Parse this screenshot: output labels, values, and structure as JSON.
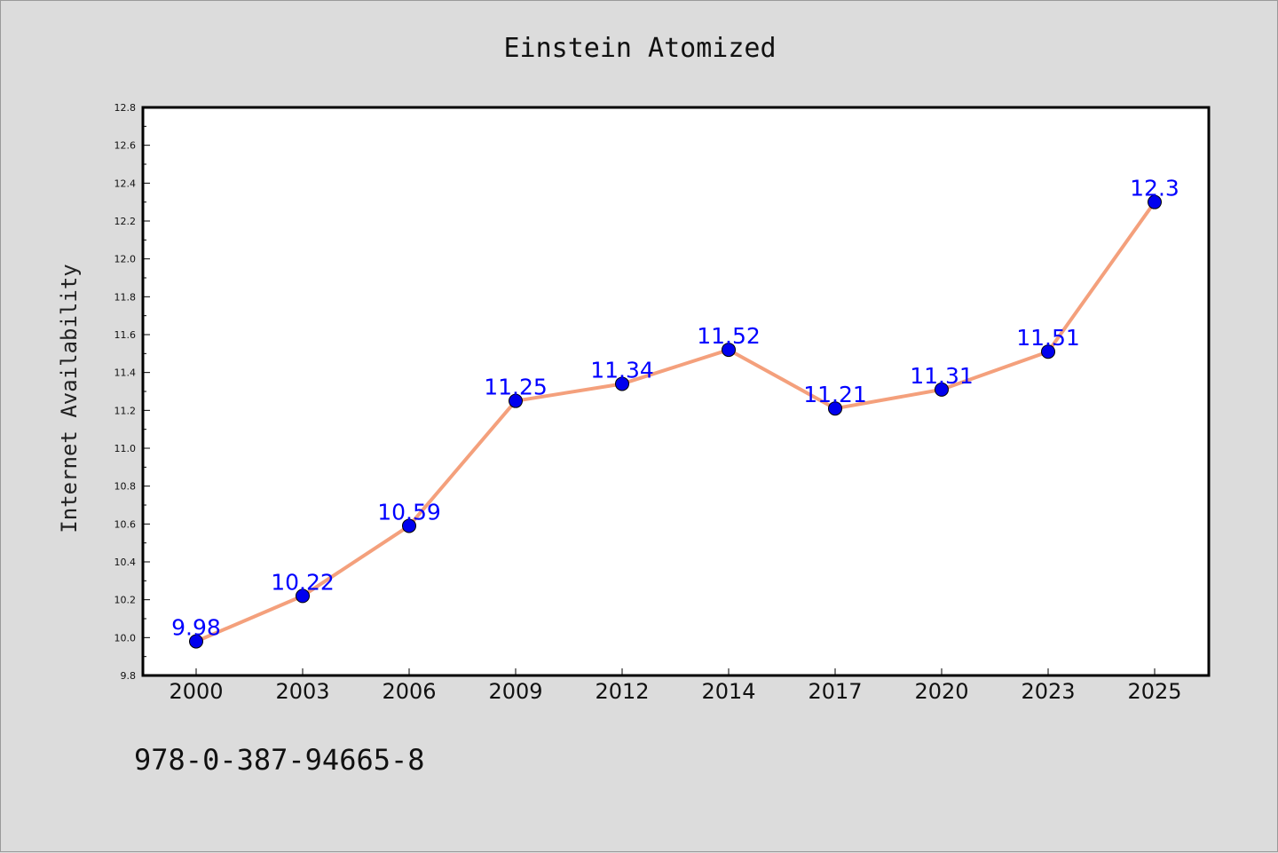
{
  "chart_data": {
    "type": "line",
    "title": "Einstein Atomized",
    "xlabel": "",
    "ylabel": "Internet Availability",
    "categories": [
      "2000",
      "2003",
      "2006",
      "2009",
      "2012",
      "2014",
      "2017",
      "2020",
      "2023",
      "2025"
    ],
    "series": [
      {
        "values": [
          9.98,
          10.22,
          10.59,
          11.25,
          11.34,
          11.52,
          11.21,
          11.31,
          11.51,
          12.3
        ],
        "labels": [
          "9.98",
          "10.22",
          "10.59",
          "11.25",
          "11.34",
          "11.52",
          "11.21",
          "11.31",
          "11.51",
          "12.3"
        ],
        "line_color": "#f4a07c",
        "marker_color": "#0000ee"
      }
    ],
    "ylim": [
      9.8,
      12.8
    ],
    "yticks": [
      "9.8",
      "10.0",
      "10.2",
      "10.4",
      "10.6",
      "10.8",
      "11.0",
      "11.2",
      "11.4",
      "11.6",
      "11.8",
      "12.0",
      "12.2",
      "12.4",
      "12.6",
      "12.8"
    ],
    "grid": false,
    "legend": "none"
  },
  "footer": {
    "text": "978-0-387-94665-8"
  },
  "colors": {
    "background": "#dcdcdc",
    "plot_background": "#ffffff",
    "data_label": "#0000ff"
  }
}
